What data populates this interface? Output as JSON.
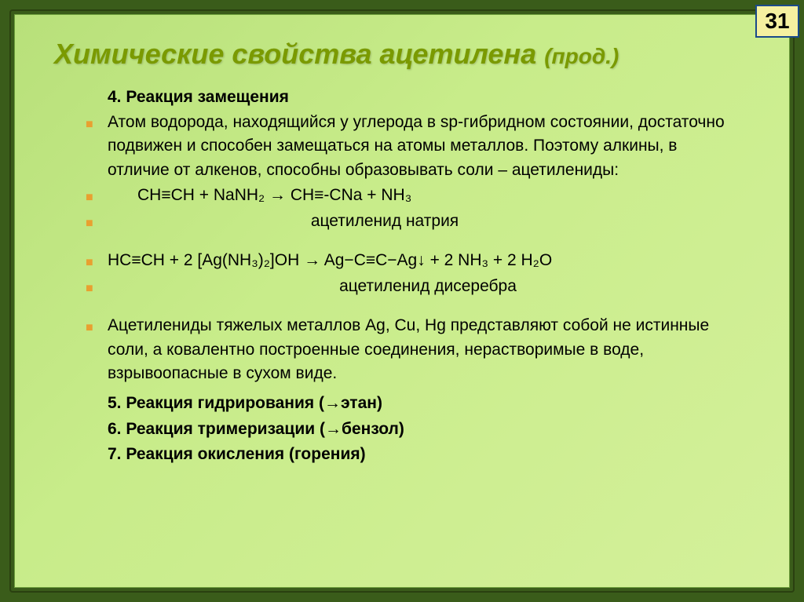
{
  "page_number": "31",
  "title_main": "Химические свойства ацетилена",
  "title_sub": "(прод.)",
  "section4": {
    "heading": "4. Реакция  замещения",
    "para": "Атом водорода, находящийся у углерода в sp-гибридном состоянии, достаточно подвижен и способен замещаться на атомы металлов. Поэтому алкины, в отличие от алкенов, способны образовывать соли – ацетилениды:",
    "eq1": "CH≡CH   +   NaNH₂     →      CH≡-CNa   +   NH₃",
    "label1": "ацетиленид натрия",
    "eq2": "HC≡CH   +   2 [Ag(NH₃)₂]OH    →    Ag−C≡C−Ag↓   +   2 NH₃   +   2 H₂O",
    "label2": "ацетиленид дисеребра",
    "para2": "Ацетилениды тяжелых металлов Ag, Cu, Hg представляют собой не истинные соли, а ковалентно построенные соединения, нерастворимые в воде, взрывоопасные в сухом виде."
  },
  "section5": "5. Реакция  гидрирования   (→этан)",
  "section6": "6. Реакция тримеризации (→бензол)",
  "section7": "7. Реакция окисления (горения)",
  "colors": {
    "title_color": "#7a9a00",
    "bullet_color": "#e8a030",
    "bg_gradient_start": "#b8e07a",
    "bg_gradient_end": "#d4f09a",
    "frame_outer": "#2a4010",
    "badge_bg": "#f5f0a0",
    "badge_border": "#1a4a8a"
  },
  "typography": {
    "title_fontsize": 36,
    "body_fontsize": 21,
    "font_family": "Arial"
  }
}
